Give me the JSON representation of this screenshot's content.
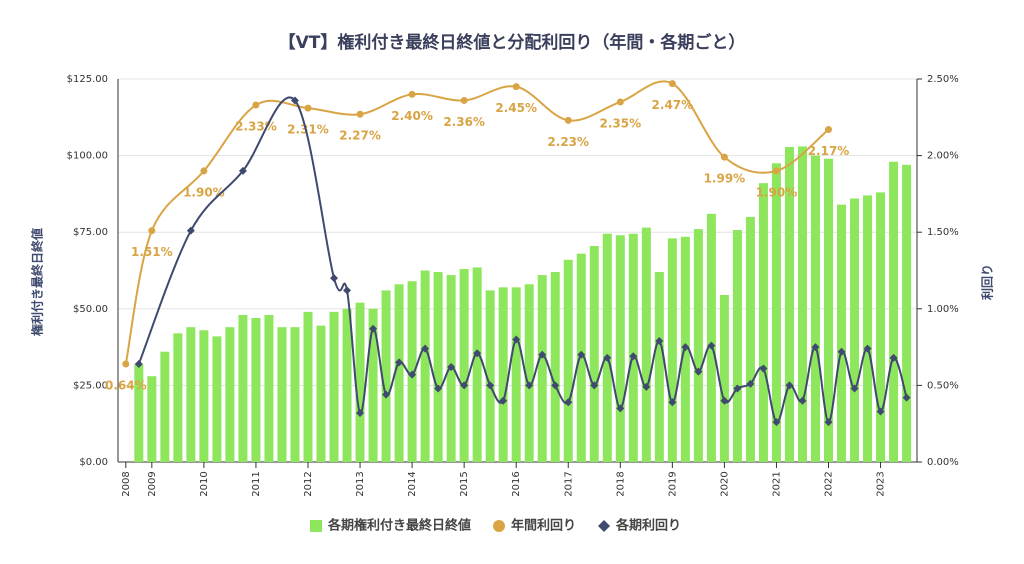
{
  "chart_data": {
    "type": "combo",
    "title": "【VT】権利付き最終日終値と分配利回り（年間・各期ごと）",
    "y_label": "権利付き最終日終値",
    "y2_label": "利回り",
    "xlim": [
      2008.35,
      2023.7
    ],
    "xticks": [
      {
        "value": 2008.5,
        "label": "2008"
      },
      2009,
      2010,
      2011,
      2012,
      2013,
      2014,
      2015,
      2016,
      2017,
      2018,
      2019,
      2020,
      2021,
      2022,
      2023
    ],
    "ylim": [
      0,
      125
    ],
    "yticks": [
      {
        "value": 0,
        "label": "$0.00"
      },
      {
        "value": 25,
        "label": "$25.00"
      },
      {
        "value": 50,
        "label": "$50.00"
      },
      {
        "value": 75,
        "label": "$75.00"
      },
      {
        "value": 100,
        "label": "$100.00"
      },
      {
        "value": 125,
        "label": "$125.00"
      }
    ],
    "y2lim": [
      0,
      2.5
    ],
    "y2ticks": [
      {
        "value": 0,
        "label": "0.00%"
      },
      {
        "value": 0.5,
        "label": "0.50%"
      },
      {
        "value": 1,
        "label": "1.00%"
      },
      {
        "value": 1.5,
        "label": "1.50%"
      },
      {
        "value": 2,
        "label": "2.00%"
      },
      {
        "value": 2.5,
        "label": "2.50%"
      }
    ],
    "grid": true,
    "legend": "bottom",
    "series": [
      {
        "name": "各期権利付き最終日終値",
        "type": "bar",
        "color": "#8ee65c",
        "x": [
          2008.75,
          2009,
          2009.25,
          2009.5,
          2009.75,
          2010,
          2010.25,
          2010.5,
          2010.75,
          2011,
          2011.25,
          2011.5,
          2011.75,
          2012,
          2012.25,
          2012.5,
          2012.75,
          2013,
          2013.25,
          2013.5,
          2013.75,
          2014,
          2014.25,
          2014.5,
          2014.75,
          2015,
          2015.25,
          2015.5,
          2015.75,
          2016,
          2016.25,
          2016.5,
          2016.75,
          2017,
          2017.25,
          2017.5,
          2017.75,
          2018,
          2018.25,
          2018.5,
          2018.75,
          2019,
          2019.25,
          2019.5,
          2019.75,
          2020,
          2020.25,
          2020.5,
          2020.75,
          2021,
          2021.25,
          2021.5,
          2021.75,
          2022,
          2022.25,
          2022.5,
          2022.75,
          2023,
          2023.25,
          2023.5
        ],
        "values": [
          32,
          28,
          36,
          42,
          44,
          43,
          41,
          44,
          48,
          47,
          48,
          44,
          44,
          49,
          44.5,
          49,
          50,
          52,
          50,
          56,
          58,
          59,
          62.5,
          62,
          61,
          63,
          63.5,
          56,
          57,
          57,
          58,
          61,
          62,
          66,
          68,
          70.5,
          74.5,
          74,
          74.5,
          76.5,
          62,
          73,
          73.5,
          76,
          81,
          54.5,
          75.7,
          80,
          91,
          97.5,
          102.8,
          103,
          100,
          99,
          84,
          86,
          87,
          88,
          98,
          97
        ]
      },
      {
        "name": "年間利回り",
        "type": "line",
        "color": "#d9a444",
        "marker": "circle",
        "labels": true,
        "x": [
          2008.5,
          2009,
          2010,
          2011,
          2012,
          2013,
          2014,
          2015,
          2016,
          2017,
          2018,
          2019,
          2020,
          2021,
          2022
        ],
        "values": [
          0.64,
          1.51,
          1.9,
          2.33,
          2.31,
          2.27,
          2.4,
          2.36,
          2.45,
          2.23,
          2.35,
          2.47,
          1.99,
          1.9,
          2.17
        ],
        "value_labels": [
          "0.64%",
          "1.51%",
          "1.90%",
          "2.33%",
          "2.31%",
          "2.27%",
          "2.40%",
          "2.36%",
          "2.45%",
          "2.23%",
          "2.35%",
          "2.47%",
          "1.99%",
          "1.90%",
          "2.17%"
        ]
      },
      {
        "name": "各期利回り",
        "type": "line",
        "color": "#3f4a6e",
        "marker": "diamond",
        "labels": false,
        "x": [
          2008.75,
          2009.75,
          2010.75,
          2011.75,
          2012.5,
          2012.75,
          2013,
          2013.25,
          2013.5,
          2013.75,
          2014,
          2014.25,
          2014.5,
          2014.75,
          2015,
          2015.25,
          2015.5,
          2015.75,
          2016,
          2016.25,
          2016.5,
          2016.75,
          2017,
          2017.25,
          2017.5,
          2017.75,
          2018,
          2018.25,
          2018.5,
          2018.75,
          2019,
          2019.25,
          2019.5,
          2019.75,
          2020,
          2020.25,
          2020.5,
          2020.75,
          2021,
          2021.25,
          2021.5,
          2021.75,
          2022,
          2022.25,
          2022.5,
          2022.75,
          2023,
          2023.25,
          2023.5
        ],
        "values": [
          0.64,
          1.51,
          1.9,
          2.36,
          1.2,
          1.12,
          0.32,
          0.87,
          0.44,
          0.65,
          0.57,
          0.74,
          0.48,
          0.62,
          0.5,
          0.71,
          0.5,
          0.4,
          0.8,
          0.5,
          0.7,
          0.5,
          0.39,
          0.7,
          0.5,
          0.68,
          0.35,
          0.69,
          0.49,
          0.79,
          0.39,
          0.75,
          0.59,
          0.76,
          0.4,
          0.48,
          0.51,
          0.61,
          0.26,
          0.5,
          0.4,
          0.75,
          0.26,
          0.72,
          0.48,
          0.74,
          0.33,
          0.68,
          0.42
        ],
        "axis": "y2"
      }
    ]
  }
}
